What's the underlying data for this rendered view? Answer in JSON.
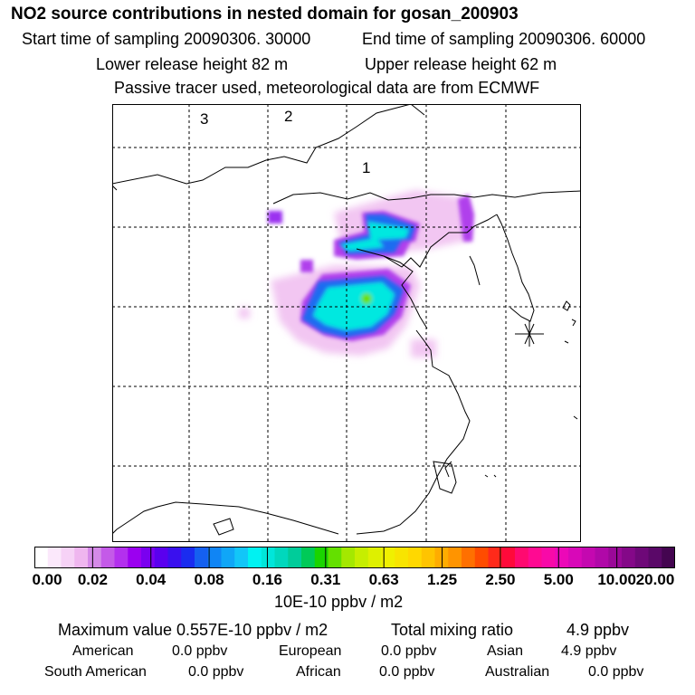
{
  "header": {
    "title": "NO2 source contributions in nested domain for gosan_200903",
    "start_sampling": "Start time of sampling 20090306. 30000",
    "end_sampling": "End time of sampling 20090306. 60000",
    "lower_release": "Lower release height   82 m",
    "upper_release": "Upper release height   62 m",
    "tracer_note": "Passive tracer used, meteorological data are from ECMWF"
  },
  "map": {
    "region_labels": [
      "3",
      "2",
      "1"
    ],
    "receptor_marker": "receptor-star"
  },
  "colorbar": {
    "tick_labels": [
      "0.00",
      "0.02",
      "0.04",
      "0.08",
      "0.16",
      "0.31",
      "0.63",
      "1.25",
      "2.50",
      "5.00",
      "10.00",
      "20.00"
    ],
    "units": "10E-10 ppbv / m2",
    "colors": [
      "#ffffff",
      "#fbe8fb",
      "#f6d2f6",
      "#efb6ef",
      "#d58ae8",
      "#c45ae8",
      "#b330ee",
      "#9b00f0",
      "#7a00f0",
      "#5a00ee",
      "#3a10ee",
      "#1a2cf0",
      "#1560f0",
      "#1085f5",
      "#10a6f7",
      "#12c6f8",
      "#00f2f2",
      "#00e6da",
      "#00d8bd",
      "#00cc9a",
      "#00ca58",
      "#1ad400",
      "#64e000",
      "#a4e800",
      "#c6ee00",
      "#def000",
      "#f0f000",
      "#f8e400",
      "#ffd800",
      "#ffc400",
      "#ffac00",
      "#ff9400",
      "#ff7000",
      "#ff4c00",
      "#ff2a1a",
      "#ff0a3a",
      "#ff0a70",
      "#ff0a92",
      "#f80aa8",
      "#ec08b8",
      "#d808b8",
      "#c408b0",
      "#b008a8",
      "#9a0898",
      "#840888",
      "#6e0878",
      "#5a0868",
      "#440550"
    ]
  },
  "summary": {
    "max_value": "Maximum value  0.557E-10 ppbv / m2",
    "total_label": "Total mixing ratio",
    "total_value": "4.9 ppbv",
    "sources": [
      {
        "name": "American",
        "value": "0.0 ppbv"
      },
      {
        "name": "European",
        "value": "0.0 ppbv"
      },
      {
        "name": "Asian",
        "value": "4.9 ppbv"
      },
      {
        "name": "South American",
        "value": "0.0 ppbv"
      },
      {
        "name": "African",
        "value": "0.0 ppbv"
      },
      {
        "name": "Australian",
        "value": "0.0 ppbv"
      }
    ]
  }
}
